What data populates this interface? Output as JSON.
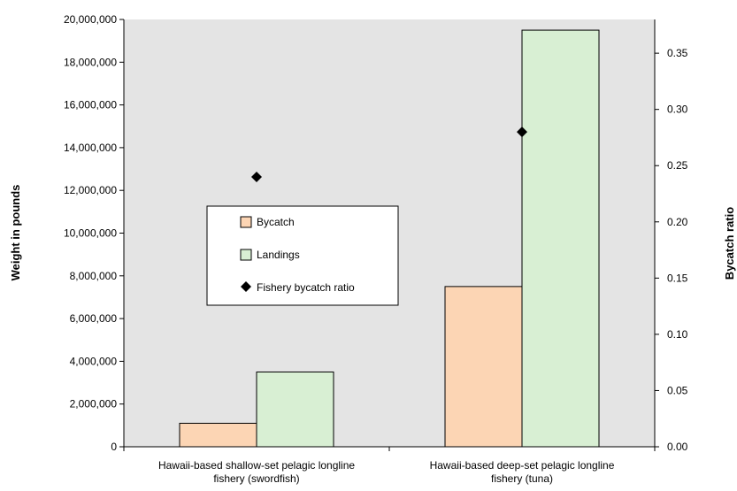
{
  "chart_data": {
    "type": "bar",
    "categories": [
      [
        "Hawaii-based shallow-set pelagic longline",
        "fishery (swordfish)"
      ],
      [
        "Hawaii-based deep-set pelagic longline",
        "fishery (tuna)"
      ]
    ],
    "series": [
      {
        "name": "Bycatch",
        "values": [
          1100000,
          7500000
        ],
        "color": "#fcd5b4",
        "axis": "left"
      },
      {
        "name": "Landings",
        "values": [
          3500000,
          19500000
        ],
        "color": "#d8efd3",
        "axis": "left"
      },
      {
        "name": "Fishery bycatch ratio",
        "values": [
          0.24,
          0.28
        ],
        "type": "scatter",
        "marker": "diamond",
        "color": "#000000",
        "axis": "right"
      }
    ],
    "ylabel": "Weight in pounds",
    "y2label": "Bycatch ratio",
    "ylim": [
      0,
      20000000
    ],
    "y2lim": [
      0,
      0.38
    ],
    "yticks": [
      "0",
      "2,000,000",
      "4,000,000",
      "6,000,000",
      "8,000,000",
      "10,000,000",
      "12,000,000",
      "14,000,000",
      "16,000,000",
      "18,000,000",
      "20,000,000"
    ],
    "y2ticks": [
      "0.00",
      "0.05",
      "0.10",
      "0.15",
      "0.20",
      "0.25",
      "0.30",
      "0.35"
    ],
    "legend": [
      "Bycatch",
      "Landings",
      "Fishery bycatch ratio"
    ],
    "legend_position": "center-left",
    "plot_background": "#e4e4e4",
    "grid": false
  }
}
